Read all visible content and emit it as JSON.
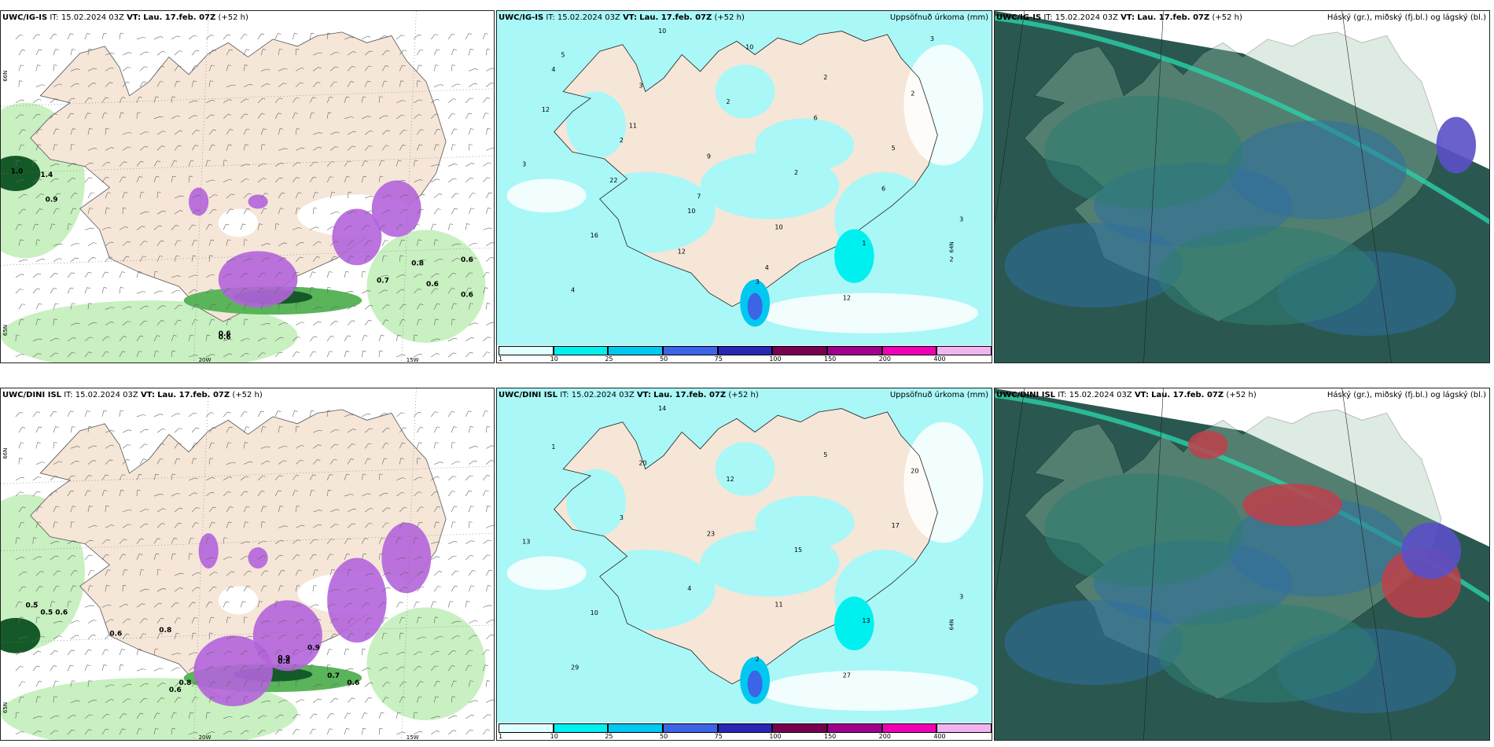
{
  "panels": [
    {
      "model": "UWC/IG-IS",
      "it_label": "IT:",
      "it": "15.02.2024 03Z",
      "vt_label": "VT:",
      "vt": "Lau. 17.feb. 07Z",
      "lead": "(+52 h)",
      "right": "",
      "kind": "wind"
    },
    {
      "model": "UWC/IG-IS",
      "it_label": "IT:",
      "it": "15.02.2024 03Z",
      "vt_label": "VT:",
      "vt": "Lau. 17.feb. 07Z",
      "lead": "(+52 h)",
      "right": "Uppsöfnuð úrkoma (mm)",
      "kind": "precip"
    },
    {
      "model": "UWC/IG-IS",
      "it_label": "IT:",
      "it": "15.02.2024 03Z",
      "vt_label": "VT:",
      "vt": "Lau. 17.feb. 07Z",
      "lead": "(+52 h)",
      "right": "Háský (gr.), miðský (fj.bl.) og lágský (bl.)",
      "kind": "cloud"
    },
    {
      "model": "UWC/DINI ISL",
      "it_label": "IT:",
      "it": "15.02.2024 03Z",
      "vt_label": "VT:",
      "vt": "Lau. 17.feb. 07Z",
      "lead": "(+52 h)",
      "right": "",
      "kind": "wind"
    },
    {
      "model": "UWC/DINI ISL",
      "it_label": "IT:",
      "it": "15.02.2024 03Z",
      "vt_label": "VT:",
      "vt": "Lau. 17.feb. 07Z",
      "lead": "(+52 h)",
      "right": "Uppsöfnuð úrkoma (mm)",
      "kind": "precip"
    },
    {
      "model": "UWC/DINI ISL",
      "it_label": "IT:",
      "it": "15.02.2024 03Z",
      "vt_label": "VT:",
      "vt": "Lau. 17.feb. 07Z",
      "lead": "(+52 h)",
      "right": "Háský (gr.), miðský (fj.bl.) og lágský (bl.)",
      "kind": "cloud"
    }
  ],
  "axis_labels": {
    "lon_20": "20W",
    "lon_15": "15W",
    "lat_66": "66N",
    "lat_64": "64N",
    "lat_64b": "64N",
    "lat_65": "65N"
  },
  "colorbar": {
    "ticks": [
      "1",
      "10",
      "25",
      "50",
      "75",
      "100",
      "150",
      "200",
      "400"
    ],
    "colors": [
      "#e0ffff",
      "#00f0f0",
      "#00c8f0",
      "#3c64e6",
      "#2828b4",
      "#780050",
      "#a0008c",
      "#f000b4",
      "#f0b4f0"
    ]
  },
  "colors": {
    "land": "#f5e6d8",
    "sea_precip": "#aaf7f7",
    "green_light": "#c8f0c0",
    "green_mid": "#5ab45a",
    "green_dark": "#145a28",
    "purple": "#b464dc",
    "cloud_teal": "#2e7d72",
    "cloud_dark": "#2a5850"
  },
  "precip_numbers_top": [
    "4",
    "2",
    "10",
    "3",
    "2",
    "5",
    "3",
    "4",
    "3",
    "9",
    "10",
    "12",
    "2",
    "3",
    "16",
    "10",
    "2",
    "2",
    "1",
    "3",
    "12",
    "22",
    "12",
    "10",
    "6",
    "6",
    "2",
    "5",
    "11",
    "7",
    "4"
  ],
  "precip_numbers_bottom": [
    "1",
    "3",
    "4",
    "2",
    "5",
    "17",
    "3",
    "29",
    "20",
    "23",
    "11",
    "27",
    "20",
    "13",
    "10",
    "14",
    "12",
    "15",
    "13"
  ],
  "wind_labels_top": [
    "1.0",
    "1.4",
    "0.9",
    "0.6",
    "0.8",
    "0.6",
    "0.6",
    "0.7",
    "0.6",
    "0.6"
  ],
  "wind_labels_bottom": [
    "0.5",
    "0.5",
    "0.6",
    "0.6",
    "0.8",
    "0.9",
    "0.8",
    "0.8",
    "0.6",
    "0.7",
    "0.9",
    "0.6"
  ]
}
